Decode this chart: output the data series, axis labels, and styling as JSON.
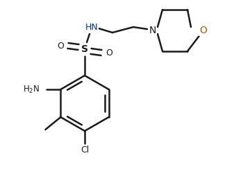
{
  "bg_color": "#ffffff",
  "line_color": "#1a1a1a",
  "text_color": "#1a1a1a",
  "orange_color": "#b35900",
  "blue_color": "#003399",
  "bond_lw": 1.8,
  "figsize": [
    3.5,
    2.54
  ],
  "dpi": 100,
  "xlim": [
    0.0,
    3.5
  ],
  "ylim": [
    0.0,
    2.54
  ]
}
